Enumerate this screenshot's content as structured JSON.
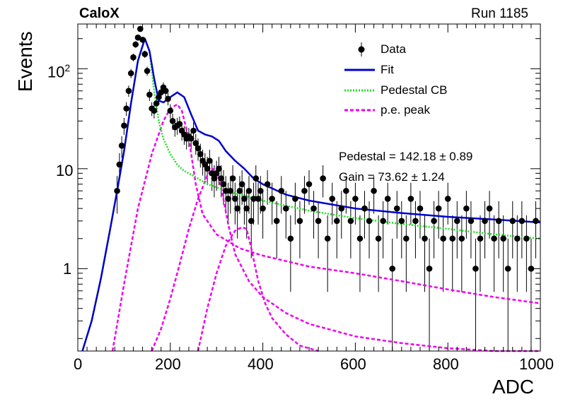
{
  "chart_data": {
    "type": "scatter",
    "title": "CaloX",
    "subtitle": "Run 1185",
    "xlabel": "ADC",
    "ylabel": "Events",
    "xlim": [
      0,
      1000
    ],
    "ylim": [
      0.15,
      280
    ],
    "y_scale": "log",
    "grid": false,
    "x_ticks": [
      "0",
      "200",
      "400",
      "600",
      "800",
      "1000"
    ],
    "y_ticks": [
      "1",
      "10",
      "10^2"
    ],
    "legend": {
      "placement": "top-right",
      "entries": [
        {
          "label": "Data",
          "style": "marker",
          "color": "#000000"
        },
        {
          "label": "Fit",
          "style": "line",
          "color": "#0000cc"
        },
        {
          "label": "Pedestal CB",
          "style": "dotted",
          "color": "#22dd22"
        },
        {
          "label": "p.e. peak",
          "style": "dashed",
          "color": "#ee00ee"
        }
      ]
    },
    "annotations": [
      "Pedestal = 142.18 ± 0.89",
      "Gain = 73.62 ± 1.24"
    ],
    "series": [
      {
        "name": "Data",
        "x": [
          85,
          90,
          95,
          100,
          105,
          110,
          115,
          120,
          125,
          130,
          135,
          140,
          145,
          150,
          155,
          160,
          165,
          170,
          175,
          180,
          185,
          190,
          195,
          200,
          205,
          210,
          215,
          220,
          225,
          230,
          235,
          240,
          245,
          250,
          255,
          260,
          265,
          270,
          275,
          280,
          285,
          290,
          295,
          300,
          305,
          310,
          315,
          320,
          325,
          330,
          335,
          340,
          345,
          350,
          355,
          360,
          365,
          370,
          375,
          380,
          385,
          390,
          395,
          400,
          410,
          420,
          430,
          440,
          450,
          460,
          470,
          480,
          490,
          500,
          510,
          520,
          530,
          540,
          550,
          560,
          570,
          580,
          590,
          600,
          610,
          620,
          630,
          640,
          650,
          660,
          670,
          680,
          690,
          700,
          710,
          720,
          730,
          740,
          750,
          760,
          770,
          780,
          790,
          800,
          810,
          820,
          830,
          840,
          850,
          860,
          870,
          880,
          890,
          900,
          910,
          920,
          930,
          940,
          950,
          960,
          970,
          980,
          990
        ],
        "y": [
          6,
          11,
          17,
          27,
          40,
          60,
          90,
          130,
          175,
          205,
          250,
          195,
          140,
          95,
          55,
          40,
          38,
          45,
          52,
          58,
          65,
          60,
          50,
          38,
          30,
          26,
          27,
          28,
          24,
          22,
          20,
          21,
          20,
          24,
          18,
          16,
          14,
          12,
          11,
          10,
          12,
          9,
          8,
          9,
          10,
          8,
          7,
          6,
          5,
          6,
          8,
          5,
          4,
          6,
          7,
          5,
          4,
          6,
          3,
          5,
          8,
          5,
          6,
          4,
          7,
          5,
          3,
          6,
          4,
          2,
          5,
          3,
          6,
          7,
          4,
          3,
          8,
          2,
          5,
          3,
          4,
          6,
          3,
          5,
          2,
          4,
          3,
          6,
          2,
          3,
          5,
          1,
          4,
          3,
          2,
          5,
          3,
          4,
          2,
          1,
          3,
          4,
          2,
          5,
          2,
          3,
          2,
          4,
          3,
          1,
          2,
          3,
          4,
          2,
          3,
          2,
          1,
          3,
          2,
          3,
          2,
          1,
          3
        ]
      },
      {
        "name": "Fit",
        "x": [
          10,
          30,
          50,
          70,
          85,
          100,
          115,
          130,
          145,
          155,
          165,
          175,
          185,
          200,
          215,
          230,
          245,
          260,
          275,
          290,
          305,
          320,
          340,
          360,
          380,
          400,
          450,
          500,
          600,
          700,
          800,
          900,
          1000
        ],
        "y": [
          0.15,
          0.3,
          0.8,
          2.5,
          6,
          15,
          45,
          120,
          200,
          150,
          80,
          48,
          46,
          52,
          58,
          52,
          35,
          24,
          22,
          21,
          19,
          15,
          12,
          10,
          8,
          7,
          5.5,
          4.8,
          4,
          3.6,
          3.3,
          3.1,
          2.9
        ]
      },
      {
        "name": "Pedestal CB",
        "x": [
          10,
          30,
          50,
          70,
          85,
          100,
          115,
          130,
          145,
          155,
          165,
          175,
          185,
          200,
          215,
          230,
          250,
          280,
          300,
          350,
          400,
          500,
          600,
          700,
          800,
          900,
          1000
        ],
        "y": [
          0.15,
          0.3,
          0.8,
          2.5,
          6,
          15,
          45,
          120,
          200,
          150,
          60,
          30,
          20,
          14,
          11,
          9.5,
          8.5,
          7,
          6.5,
          5.5,
          4.8,
          3.8,
          3.2,
          2.8,
          2.5,
          2.2,
          2.0
        ]
      },
      {
        "name": "p.e. peak 1",
        "x": [
          75,
          100,
          130,
          160,
          185,
          200,
          215,
          225,
          240,
          255,
          270,
          300,
          350,
          400,
          500,
          600,
          700,
          800,
          900,
          1000
        ],
        "y": [
          0.15,
          0.7,
          4,
          14,
          30,
          40,
          44,
          38,
          20,
          7,
          3.5,
          2.2,
          1.6,
          1.35,
          1.05,
          0.9,
          0.75,
          0.62,
          0.52,
          0.45
        ]
      },
      {
        "name": "p.e. peak 2",
        "x": [
          160,
          180,
          200,
          220,
          240,
          260,
          280,
          290,
          300,
          310,
          325,
          340,
          370,
          400,
          450,
          500,
          600,
          700,
          800,
          900,
          1000
        ],
        "y": [
          0.15,
          0.25,
          0.5,
          1.1,
          2.5,
          5,
          8.5,
          10,
          9.5,
          6.5,
          2.8,
          1.4,
          0.75,
          0.52,
          0.36,
          0.28,
          0.21,
          0.18,
          0.16,
          0.15,
          0.14
        ]
      },
      {
        "name": "p.e. peak 3",
        "x": [
          260,
          280,
          300,
          320,
          340,
          355,
          365,
          375,
          390,
          405,
          420,
          450,
          480,
          520
        ],
        "y": [
          0.15,
          0.4,
          0.9,
          1.7,
          2.4,
          2.6,
          2.5,
          1.6,
          0.75,
          0.45,
          0.32,
          0.22,
          0.17,
          0.14
        ]
      }
    ]
  }
}
